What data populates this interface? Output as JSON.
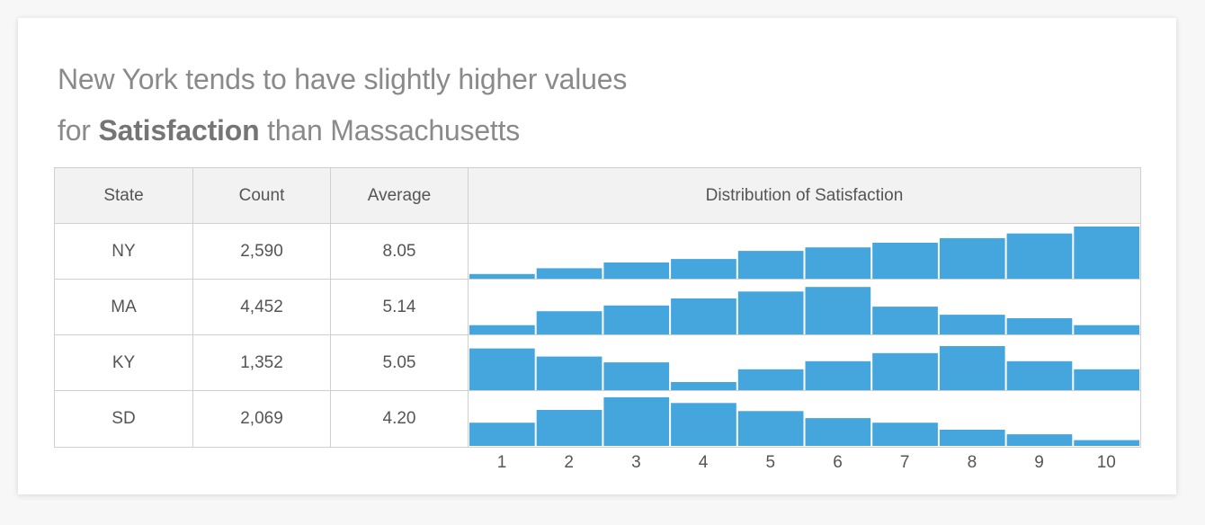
{
  "title": {
    "line1": "New York tends to have slightly higher values",
    "line2_pre": "for ",
    "line2_bold": "Satisfaction",
    "line2_post": " than Massachusetts"
  },
  "table": {
    "headers": [
      "State",
      "Count",
      "Average",
      "Distribution of Satisfaction"
    ],
    "rows": [
      {
        "state": "NY",
        "count": "2,590",
        "average": "8.05"
      },
      {
        "state": "MA",
        "count": "4,452",
        "average": "5.14"
      },
      {
        "state": "KY",
        "count": "1,352",
        "average": "5.05"
      },
      {
        "state": "SD",
        "count": "2,069",
        "average": "4.20"
      }
    ]
  },
  "chart_data": {
    "type": "bar",
    "title": "Distribution of Satisfaction",
    "categories": [
      "1",
      "2",
      "3",
      "4",
      "5",
      "6",
      "7",
      "8",
      "9",
      "10"
    ],
    "series": [
      {
        "name": "NY",
        "values": [
          4,
          9,
          14,
          17,
          24,
          27,
          31,
          35,
          39,
          45
        ]
      },
      {
        "name": "MA",
        "values": [
          8,
          20,
          25,
          31,
          37,
          41,
          24,
          17,
          14,
          8
        ]
      },
      {
        "name": "KY",
        "values": [
          36,
          29,
          24,
          7,
          18,
          25,
          32,
          38,
          25,
          18
        ]
      },
      {
        "name": "SD",
        "values": [
          20,
          31,
          42,
          37,
          30,
          24,
          20,
          14,
          10,
          5
        ]
      }
    ],
    "ylim": [
      0,
      45
    ],
    "bar_color": "#45a6de"
  }
}
